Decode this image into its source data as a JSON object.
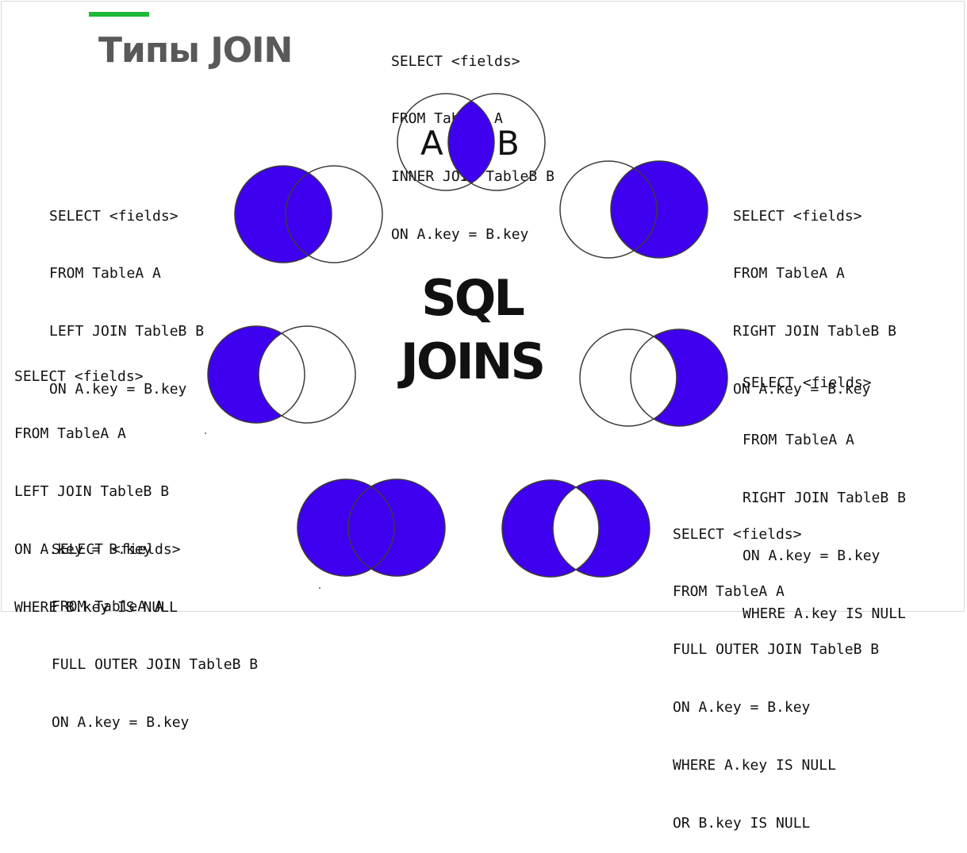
{
  "title": "Типы JOIN",
  "center_title": [
    "SQL",
    "JOINS"
  ],
  "colors": {
    "fill": "#4000f0",
    "accent": "#1fb838",
    "title_text": "#595959",
    "outline": "#3b3b3b"
  },
  "joins": {
    "inner": {
      "venn": "intersection",
      "circle_labels": [
        "A",
        "B"
      ],
      "lines": [
        "SELECT <fields>",
        "FROM TableA A",
        "INNER JOIN TableB B",
        "ON A.key = B.key"
      ]
    },
    "left": {
      "venn": "left-full",
      "lines": [
        "SELECT <fields>",
        "FROM TableA A",
        "LEFT JOIN TableB B",
        "ON A.key = B.key"
      ]
    },
    "right": {
      "venn": "right-full",
      "lines": [
        "SELECT <fields>",
        "FROM TableA A",
        "RIGHT JOIN TableB B",
        "ON A.key = B.key"
      ]
    },
    "left_excl": {
      "venn": "left-only",
      "lines": [
        "SELECT <fields>",
        "FROM TableA A",
        "LEFT JOIN TableB B",
        "ON A.key = B.key",
        "WHERE B.key IS NULL"
      ]
    },
    "right_excl": {
      "venn": "right-only",
      "lines": [
        "SELECT <fields>",
        "FROM TableA A",
        "RIGHT JOIN TableB B",
        "ON A.key = B.key",
        "WHERE A.key IS NULL"
      ]
    },
    "full": {
      "venn": "union",
      "lines": [
        "SELECT <fields>",
        "FROM TableA A",
        "FULL OUTER JOIN TableB B",
        "ON A.key = B.key"
      ]
    },
    "full_excl": {
      "venn": "symmetric-difference",
      "lines": [
        "SELECT <fields>",
        "FROM TableA A",
        "FULL OUTER JOIN TableB B",
        "ON A.key = B.key",
        "WHERE A.key IS NULL",
        "OR B.key IS NULL"
      ]
    }
  }
}
